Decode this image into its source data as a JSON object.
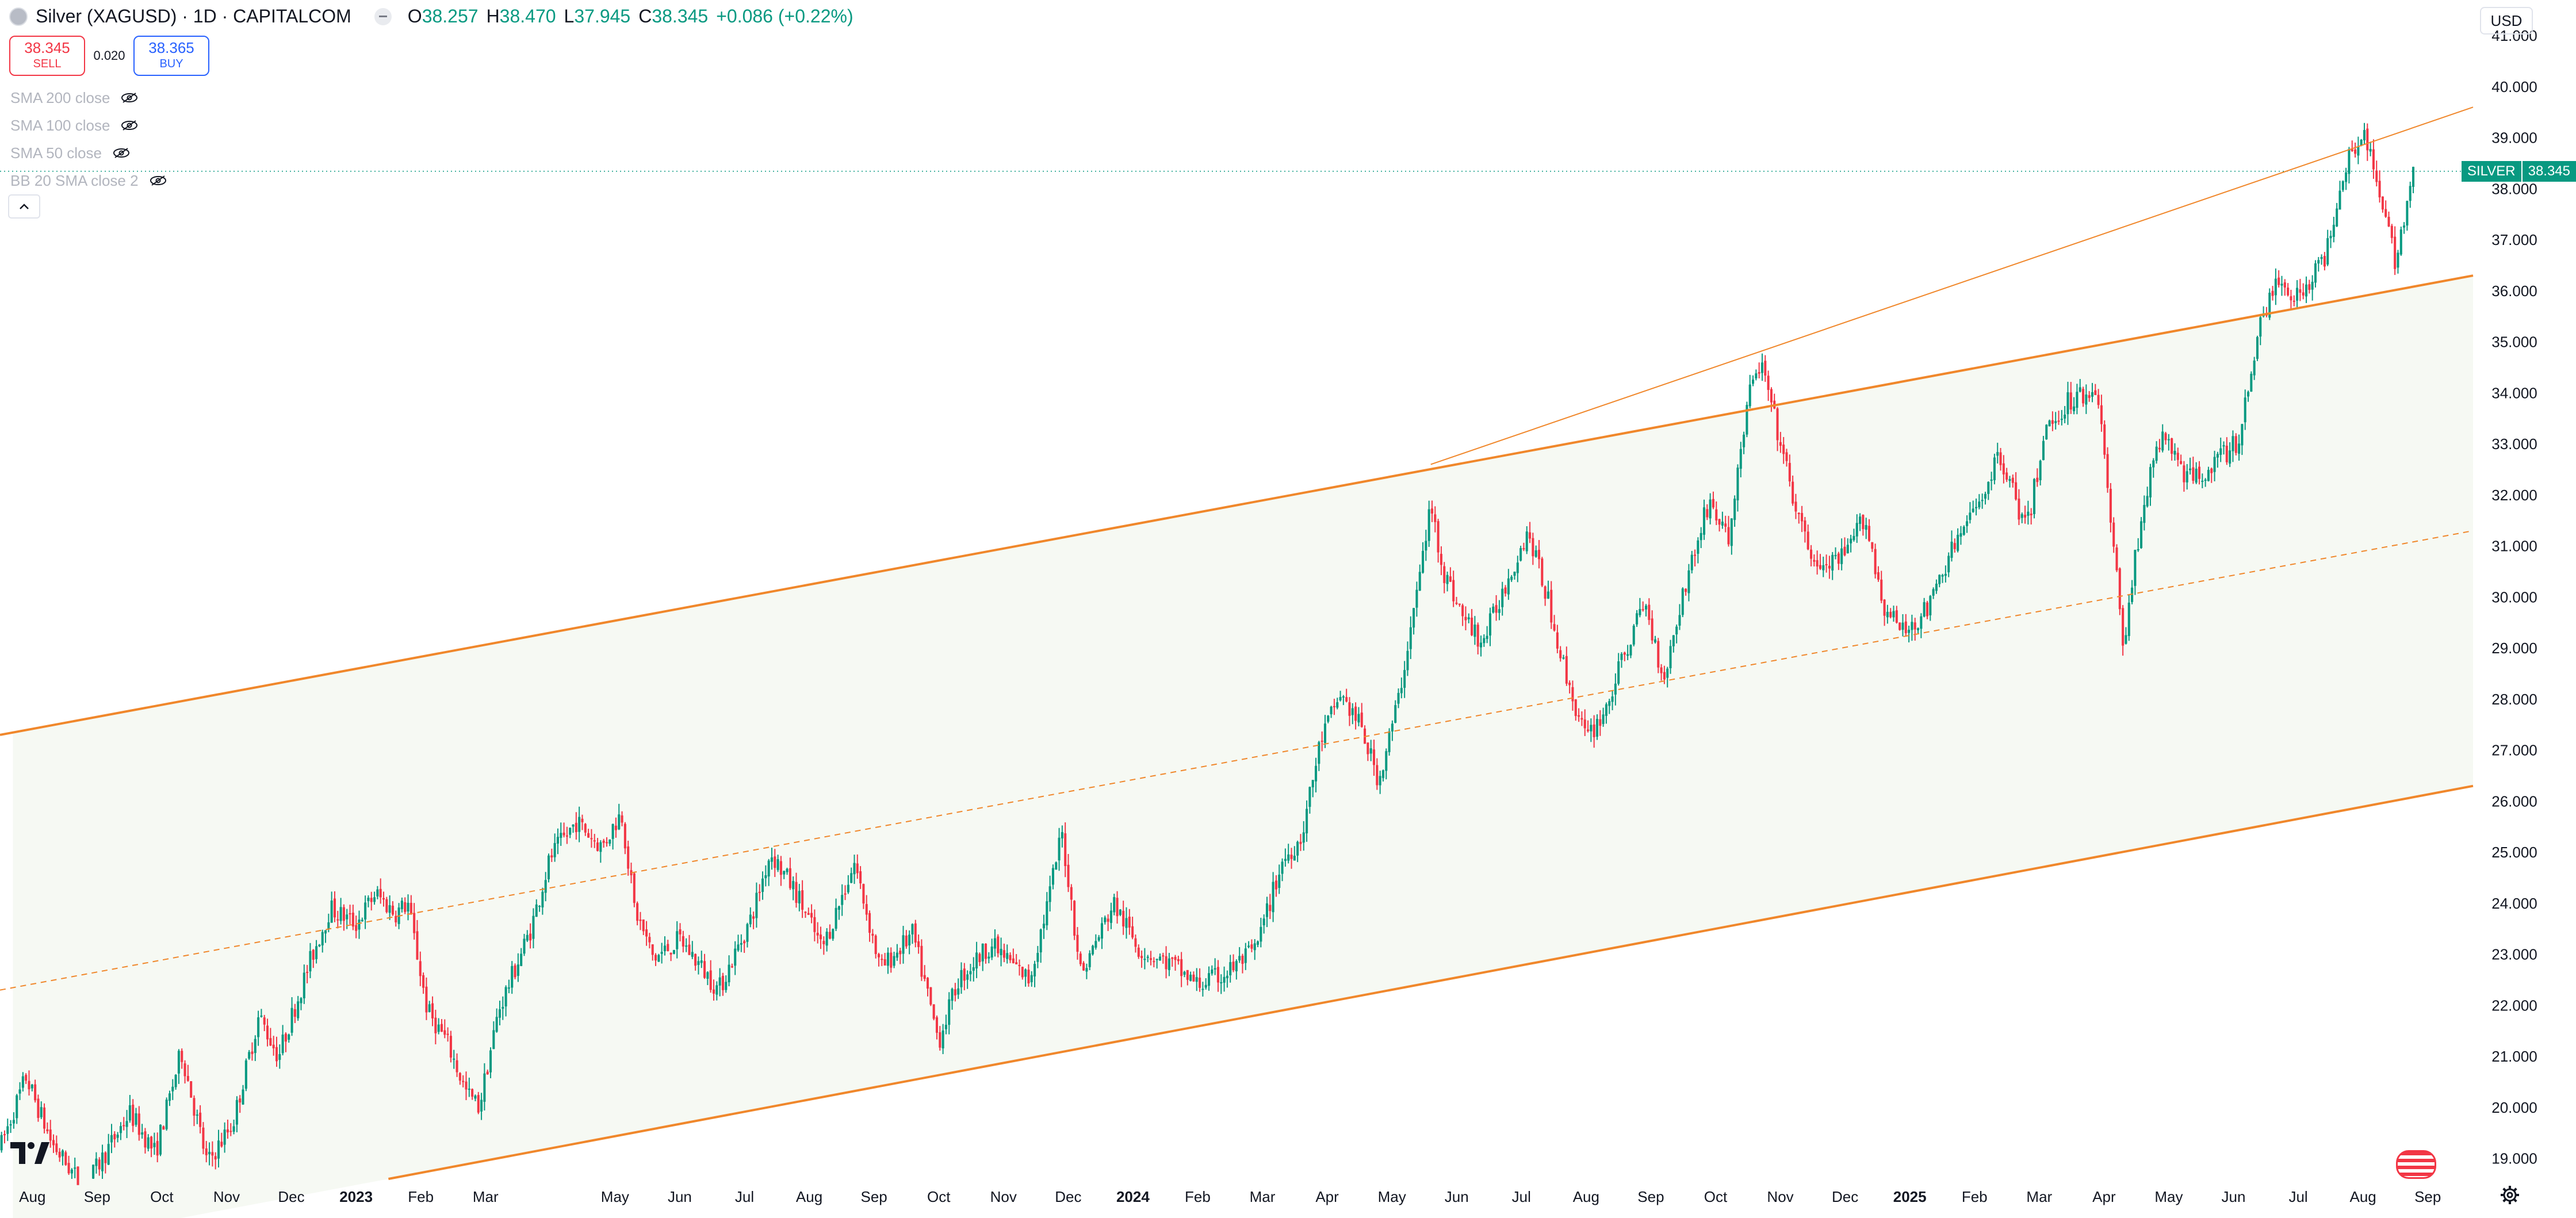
{
  "header": {
    "title": "Silver (XAGUSD) · 1D · CAPITALCOM",
    "ohlc": [
      {
        "key": "O",
        "value": "38.257"
      },
      {
        "key": "H",
        "value": "38.470"
      },
      {
        "key": "L",
        "value": "37.945"
      },
      {
        "key": "C",
        "value": "38.345"
      }
    ],
    "change": "+0.086 (+0.22%)"
  },
  "trade": {
    "sell_price": "38.345",
    "sell_label": "SELL",
    "spread": "0.020",
    "buy_price": "38.365",
    "buy_label": "BUY"
  },
  "indicators": [
    {
      "label": "SMA 200 close"
    },
    {
      "label": "SMA 100 close"
    },
    {
      "label": "SMA 50 close"
    },
    {
      "label": "BB 20 SMA close 2"
    }
  ],
  "currency": "USD",
  "price_tag": {
    "name": "SILVER",
    "value": "38.345"
  },
  "colors": {
    "up": "#089981",
    "down": "#f23645",
    "channel": "#f0872b",
    "channel_fill": "#f6f9f3",
    "axis_text": "#131722"
  },
  "icons": [
    "symbol-icon",
    "minus-icon",
    "eye-off-icon",
    "chevron-up-icon",
    "tradingview-logo",
    "us-flag-icon",
    "gear-icon"
  ],
  "chart_data": {
    "type": "candlestick",
    "symbol": "SILVER",
    "ylim": [
      18.6,
      41.7
    ],
    "y_ticks": [
      "19.000",
      "20.000",
      "21.000",
      "22.000",
      "23.000",
      "24.000",
      "25.000",
      "26.000",
      "27.000",
      "28.000",
      "29.000",
      "30.000",
      "31.000",
      "32.000",
      "33.000",
      "34.000",
      "35.000",
      "36.000",
      "37.000",
      "38.000",
      "39.000",
      "40.000",
      "41.000"
    ],
    "x_ticks": [
      {
        "label": "Aug",
        "t": 0.5,
        "bold": false
      },
      {
        "label": "Sep",
        "t": 1.5,
        "bold": false
      },
      {
        "label": "Oct",
        "t": 2.5,
        "bold": false
      },
      {
        "label": "Nov",
        "t": 3.5,
        "bold": false
      },
      {
        "label": "Dec",
        "t": 4.5,
        "bold": false
      },
      {
        "label": "2023",
        "t": 5.5,
        "bold": true
      },
      {
        "label": "Feb",
        "t": 6.5,
        "bold": false
      },
      {
        "label": "Mar",
        "t": 7.5,
        "bold": false
      },
      {
        "label": "May",
        "t": 9.5,
        "bold": false
      },
      {
        "label": "Jun",
        "t": 10.5,
        "bold": false
      },
      {
        "label": "Jul",
        "t": 11.5,
        "bold": false
      },
      {
        "label": "Aug",
        "t": 12.5,
        "bold": false
      },
      {
        "label": "Sep",
        "t": 13.5,
        "bold": false
      },
      {
        "label": "Oct",
        "t": 14.5,
        "bold": false
      },
      {
        "label": "Nov",
        "t": 15.5,
        "bold": false
      },
      {
        "label": "Dec",
        "t": 16.5,
        "bold": false
      },
      {
        "label": "2024",
        "t": 17.5,
        "bold": true
      },
      {
        "label": "Feb",
        "t": 18.5,
        "bold": false
      },
      {
        "label": "Mar",
        "t": 19.5,
        "bold": false
      },
      {
        "label": "Apr",
        "t": 20.5,
        "bold": false
      },
      {
        "label": "May",
        "t": 21.5,
        "bold": false
      },
      {
        "label": "Jun",
        "t": 22.5,
        "bold": false
      },
      {
        "label": "Jul",
        "t": 23.5,
        "bold": false
      },
      {
        "label": "Aug",
        "t": 24.5,
        "bold": false
      },
      {
        "label": "Sep",
        "t": 25.5,
        "bold": false
      },
      {
        "label": "Oct",
        "t": 26.5,
        "bold": false
      },
      {
        "label": "Nov",
        "t": 27.5,
        "bold": false
      },
      {
        "label": "Dec",
        "t": 28.5,
        "bold": false
      },
      {
        "label": "2025",
        "t": 29.5,
        "bold": true
      },
      {
        "label": "Feb",
        "t": 30.5,
        "bold": false
      },
      {
        "label": "Mar",
        "t": 31.5,
        "bold": false
      },
      {
        "label": "Apr",
        "t": 32.5,
        "bold": false
      },
      {
        "label": "May",
        "t": 33.5,
        "bold": false
      },
      {
        "label": "Jun",
        "t": 34.5,
        "bold": false
      },
      {
        "label": "Jul",
        "t": 35.5,
        "bold": false
      },
      {
        "label": "Aug",
        "t": 36.5,
        "bold": false
      },
      {
        "label": "Sep",
        "t": 37.5,
        "bold": false
      }
    ],
    "x_range": [
      0,
      38.2
    ],
    "price_path": [
      [
        0.0,
        19.2
      ],
      [
        0.4,
        20.6
      ],
      [
        0.8,
        19.3
      ],
      [
        1.3,
        18.4
      ],
      [
        2.0,
        19.9
      ],
      [
        2.4,
        19.1
      ],
      [
        2.8,
        21.1
      ],
      [
        3.2,
        18.9
      ],
      [
        3.6,
        19.7
      ],
      [
        4.0,
        21.8
      ],
      [
        4.3,
        21.0
      ],
      [
        4.8,
        22.9
      ],
      [
        5.1,
        23.9
      ],
      [
        5.5,
        23.6
      ],
      [
        5.8,
        24.2
      ],
      [
        6.1,
        23.8
      ],
      [
        6.3,
        24.0
      ],
      [
        6.6,
        21.9
      ],
      [
        6.9,
        21.3
      ],
      [
        7.2,
        20.3
      ],
      [
        7.4,
        20.0
      ],
      [
        7.7,
        21.9
      ],
      [
        8.2,
        23.5
      ],
      [
        8.5,
        24.9
      ],
      [
        8.9,
        25.6
      ],
      [
        9.3,
        25.1
      ],
      [
        9.6,
        25.8
      ],
      [
        9.8,
        23.9
      ],
      [
        10.1,
        22.9
      ],
      [
        10.5,
        23.3
      ],
      [
        11.1,
        22.3
      ],
      [
        11.6,
        23.7
      ],
      [
        11.9,
        25.0
      ],
      [
        12.3,
        24.2
      ],
      [
        12.7,
        23.1
      ],
      [
        13.2,
        24.8
      ],
      [
        13.6,
        22.7
      ],
      [
        14.1,
        23.4
      ],
      [
        14.5,
        21.3
      ],
      [
        14.8,
        22.5
      ],
      [
        15.3,
        23.2
      ],
      [
        15.9,
        22.5
      ],
      [
        16.2,
        24.1
      ],
      [
        16.4,
        25.4
      ],
      [
        16.7,
        22.6
      ],
      [
        17.2,
        24.0
      ],
      [
        17.6,
        23.1
      ],
      [
        18.1,
        22.8
      ],
      [
        18.5,
        22.4
      ],
      [
        18.9,
        22.6
      ],
      [
        19.4,
        23.1
      ],
      [
        19.8,
        24.8
      ],
      [
        20.1,
        25.3
      ],
      [
        20.4,
        27.2
      ],
      [
        20.7,
        28.1
      ],
      [
        21.0,
        27.5
      ],
      [
        21.3,
        26.4
      ],
      [
        21.6,
        28.0
      ],
      [
        21.9,
        30.2
      ],
      [
        22.1,
        31.8
      ],
      [
        22.3,
        30.5
      ],
      [
        22.6,
        29.6
      ],
      [
        22.9,
        29.1
      ],
      [
        23.3,
        30.4
      ],
      [
        23.6,
        31.3
      ],
      [
        23.9,
        30.0
      ],
      [
        24.2,
        28.4
      ],
      [
        24.5,
        27.2
      ],
      [
        24.8,
        27.8
      ],
      [
        25.1,
        28.9
      ],
      [
        25.4,
        29.9
      ],
      [
        25.7,
        28.4
      ],
      [
        26.0,
        30.1
      ],
      [
        26.4,
        31.9
      ],
      [
        26.7,
        31.1
      ],
      [
        27.0,
        33.9
      ],
      [
        27.2,
        34.6
      ],
      [
        27.5,
        33.0
      ],
      [
        27.8,
        31.4
      ],
      [
        28.1,
        30.5
      ],
      [
        28.5,
        30.8
      ],
      [
        28.8,
        31.6
      ],
      [
        29.1,
        29.8
      ],
      [
        29.4,
        29.3
      ],
      [
        29.8,
        29.8
      ],
      [
        30.1,
        30.8
      ],
      [
        30.5,
        31.7
      ],
      [
        30.9,
        32.8
      ],
      [
        31.3,
        31.3
      ],
      [
        31.6,
        33.3
      ],
      [
        32.0,
        33.9
      ],
      [
        32.4,
        34.1
      ],
      [
        32.6,
        31.5
      ],
      [
        32.8,
        29.1
      ],
      [
        33.1,
        31.8
      ],
      [
        33.4,
        33.2
      ],
      [
        33.8,
        32.3
      ],
      [
        34.2,
        32.6
      ],
      [
        34.6,
        33.1
      ],
      [
        34.9,
        35.4
      ],
      [
        35.2,
        36.2
      ],
      [
        35.5,
        35.9
      ],
      [
        35.9,
        36.6
      ],
      [
        36.2,
        38.4
      ],
      [
        36.5,
        39.2
      ],
      [
        36.8,
        37.6
      ],
      [
        37.0,
        36.6
      ],
      [
        37.2,
        37.9
      ],
      [
        37.3,
        38.345
      ]
    ],
    "channel": {
      "upper": [
        [
          0.0,
          27.3
        ],
        [
          38.2,
          36.3
        ]
      ],
      "lower": [
        [
          6.0,
          18.6
        ],
        [
          38.2,
          26.3
        ]
      ],
      "median": [
        [
          0.0,
          22.3
        ],
        [
          38.2,
          31.3
        ]
      ],
      "upper_extension": [
        [
          22.1,
          32.6
        ],
        [
          38.2,
          39.6
        ]
      ]
    },
    "last_price": 38.345
  }
}
